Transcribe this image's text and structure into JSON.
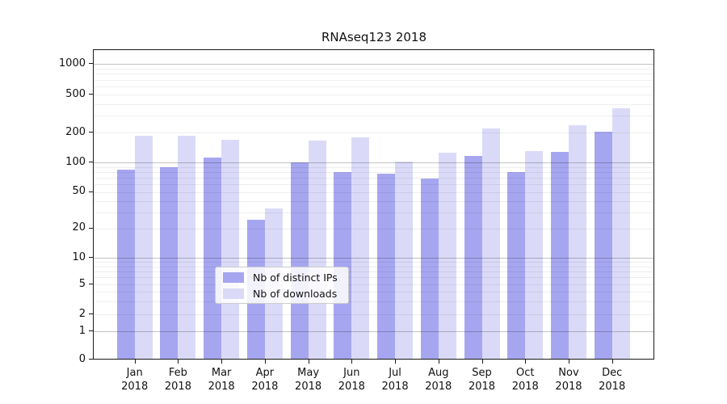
{
  "chart_data": {
    "type": "bar",
    "title": "RNAseq123 2018",
    "categories": [
      "Jan 2018",
      "Feb 2018",
      "Mar 2018",
      "Apr 2018",
      "May 2018",
      "Jun 2018",
      "Jul 2018",
      "Aug 2018",
      "Sep 2018",
      "Oct 2018",
      "Nov 2018",
      "Dec 2018"
    ],
    "series": [
      {
        "name": "Nb of distinct IPs",
        "color": "#a6a6f0",
        "values": [
          84,
          90,
          113,
          25,
          100,
          79,
          77,
          68,
          117,
          80,
          129,
          206
        ]
      },
      {
        "name": "Nb of downloads",
        "color": "#dadaf8",
        "values": [
          185,
          185,
          170,
          33,
          166,
          180,
          101,
          126,
          221,
          130,
          238,
          361
        ]
      }
    ],
    "xlabel": "",
    "ylabel": "",
    "yscale": "symlog",
    "yticks": [
      "0",
      "1",
      "2",
      "5",
      "10",
      "20",
      "50",
      "100",
      "200",
      "500",
      "1000"
    ],
    "ylim": [
      0,
      1400
    ],
    "grid": "on",
    "legend_position": "lower-center-inside"
  },
  "colors": {
    "major_grid": "#b9b9b9",
    "minor_grid": "#ededed",
    "axis": "#1a1a1a",
    "background": "#ffffff"
  }
}
